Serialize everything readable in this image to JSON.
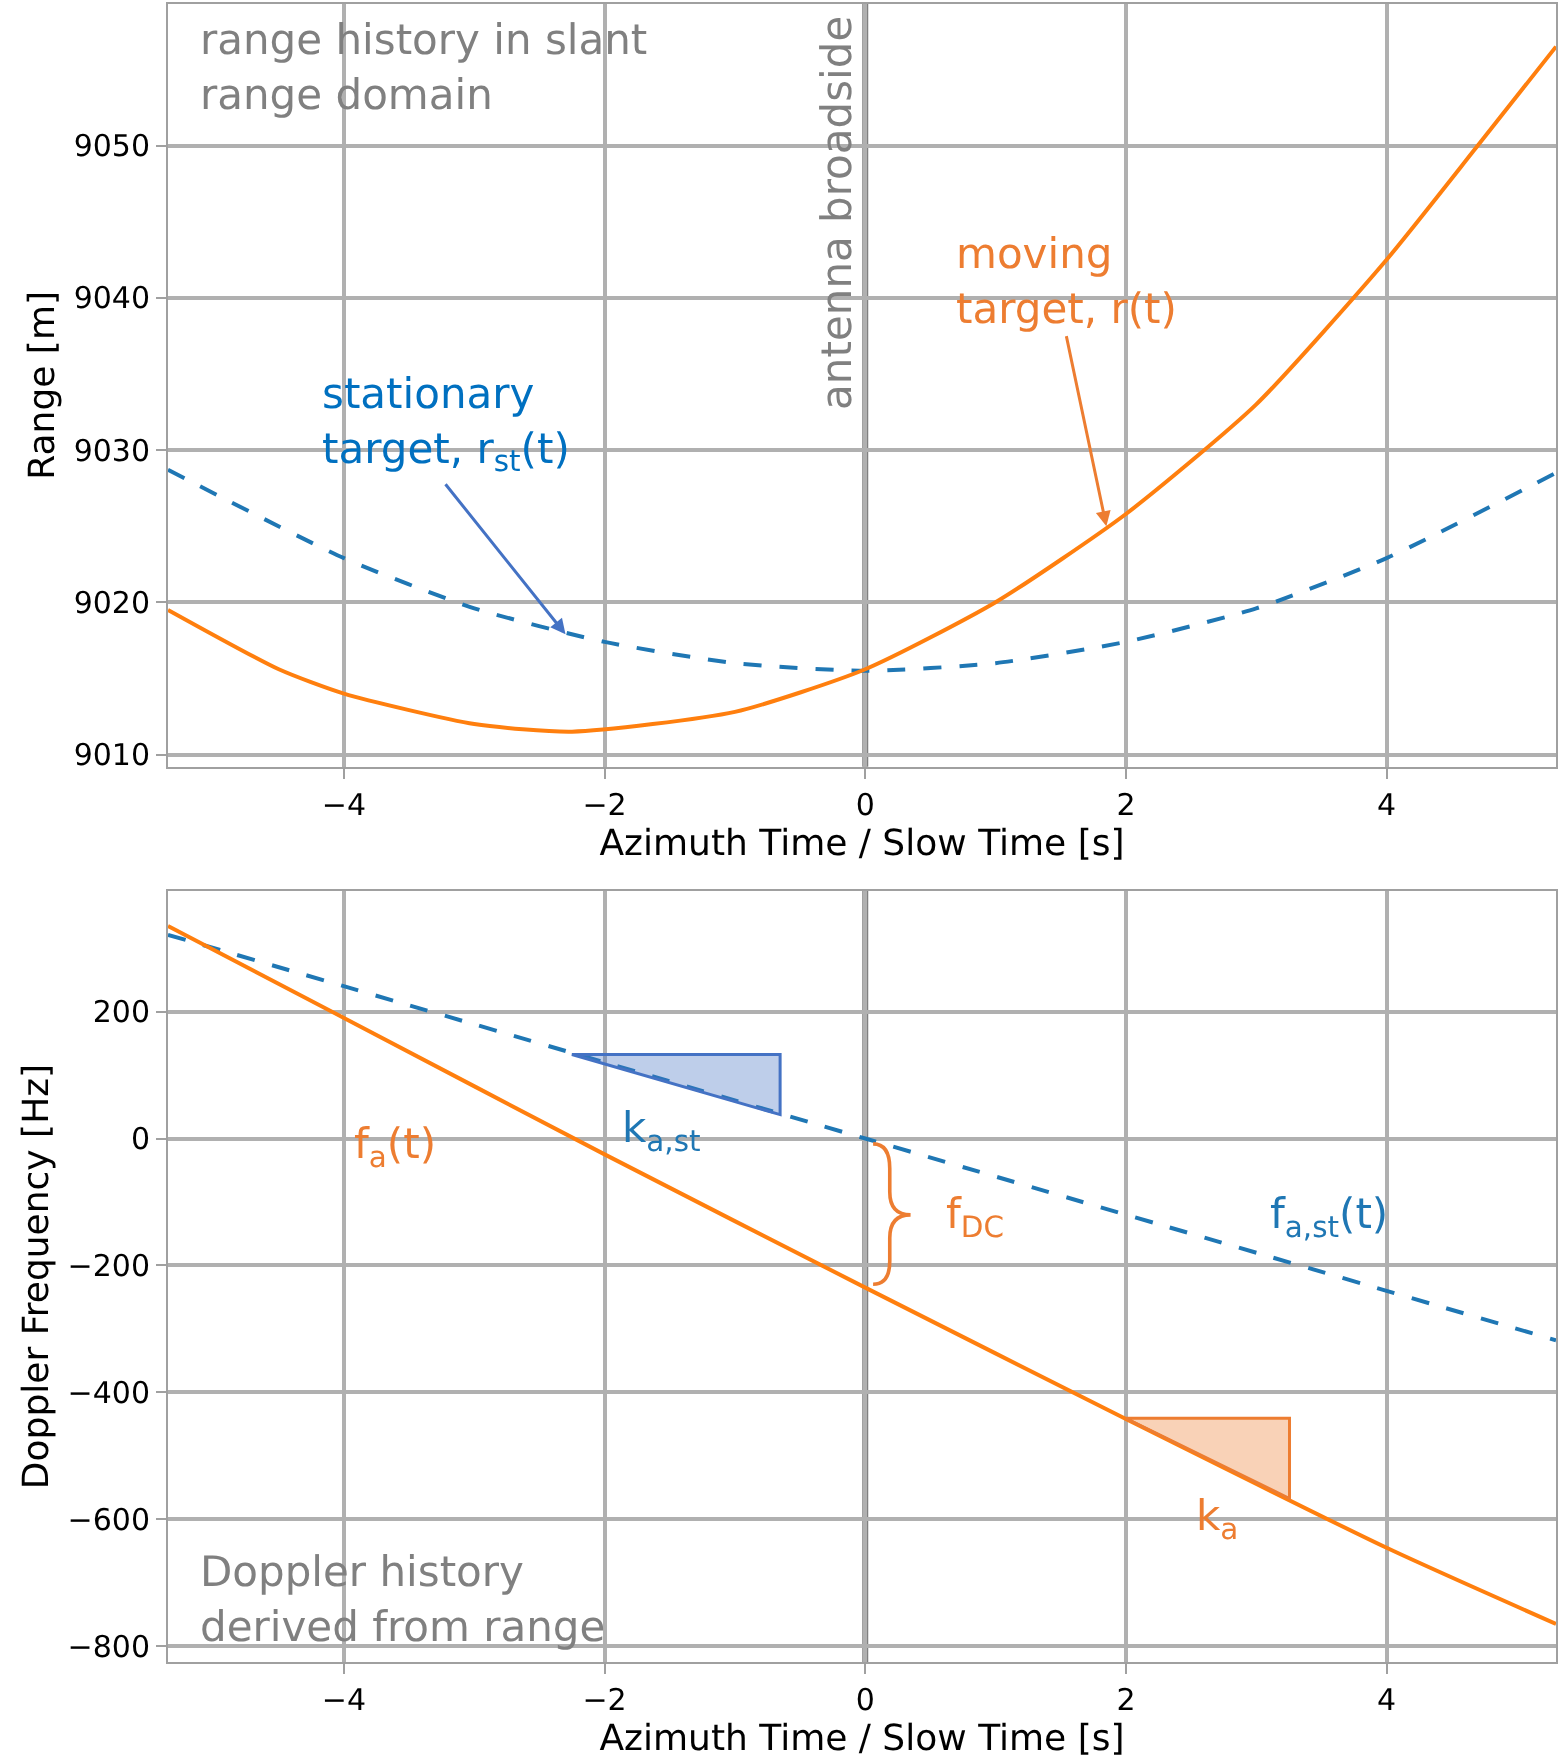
{
  "chart_data": [
    {
      "type": "line",
      "xlabel": "Azimuth Time / Slow Time [s]",
      "ylabel": "Range [m]",
      "xlim": [
        -5.35,
        5.3
      ],
      "xticks": [
        -4,
        -2,
        0,
        2,
        4
      ],
      "ylim": [
        9009.2,
        9059.3
      ],
      "yticks": [
        9010,
        9020,
        9030,
        9040,
        9050
      ],
      "grid": true,
      "series": [
        {
          "color": "#1f77b4",
          "line_style": "dashed",
          "x": [
            -5.35,
            -4,
            -3,
            -2,
            -1,
            0,
            1,
            2,
            3,
            4,
            5.3
          ],
          "values": [
            9028.7,
            9022.9,
            9019.6,
            9017.4,
            9016.0,
            9015.5,
            9016.0,
            9017.4,
            9019.6,
            9022.9,
            9028.5
          ]
        },
        {
          "color": "#ff7f0e",
          "line_style": "solid",
          "x": [
            -5.35,
            -4.5,
            -4,
            -3,
            -2.25,
            -1,
            0,
            1,
            2,
            3,
            4,
            4.7,
            5.3
          ],
          "values": [
            9019.5,
            9015.6,
            9014.0,
            9012.0,
            9011.5,
            9012.8,
            9015.6,
            9020.0,
            9025.8,
            9033.0,
            9042.5,
            9050.0,
            9056.5
          ]
        }
      ],
      "ref_lines": [
        {
          "axis": "x",
          "value": 0,
          "label": "antenna broadside",
          "color": "#808080"
        }
      ],
      "annotations": [
        "range history in slant\nrange domain",
        {
          "text": "stationary\ntarget, r$_{st}$(t)",
          "x": -2.3,
          "y": 9017.9
        },
        {
          "text": "moving\ntarget, r(t)",
          "x": 1.85,
          "y": 9025.0
        }
      ]
    },
    {
      "type": "line",
      "xlabel": "Azimuth Time / Slow Time [s]",
      "ylabel": "Doppler Frequency [Hz]",
      "xlim": [
        -5.35,
        5.3
      ],
      "xticks": [
        -4,
        -2,
        0,
        2,
        4
      ],
      "ylim": [
        -825,
        390
      ],
      "yticks": [
        -800,
        -600,
        -400,
        -200,
        0,
        200
      ],
      "grid": true,
      "series": [
        {
          "color": "#1f77b4",
          "line_style": "dashed",
          "x": [
            -5.35,
            0,
            5.3
          ],
          "values": [
            321,
            0,
            -318
          ]
        },
        {
          "color": "#ff7f0e",
          "line_style": "solid",
          "x": [
            -5.35,
            -4,
            -2,
            0,
            2,
            4,
            5.3
          ],
          "values": [
            335,
            190,
            -25,
            -235,
            -442,
            -645,
            -765
          ]
        }
      ],
      "ref_lines": [
        {
          "axis": "x",
          "value": 0,
          "color": "#808080"
        }
      ],
      "annotations": [
        "Doppler history\nderived from range",
        "f$_{a}$(t)",
        "k$_{a,st}$",
        "f$_{DC}$",
        "f$_{a,st}$(t)",
        "k$_{a}$"
      ]
    }
  ]
}
